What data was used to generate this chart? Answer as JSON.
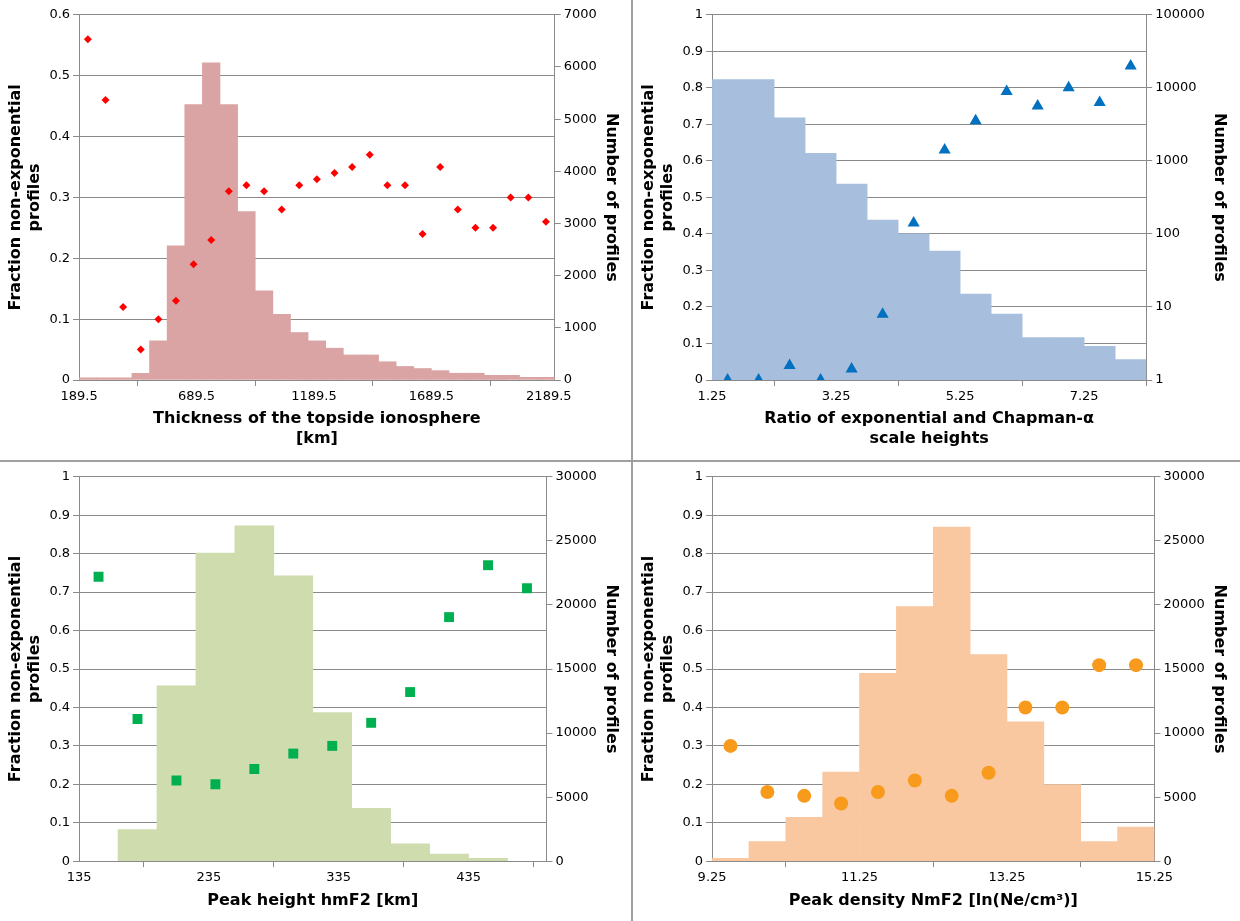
{
  "chart_data": [
    {
      "type": "histogram",
      "xlabel": "Thickness of the topside ionosphere [km]",
      "ylabel": "Fraction non-exponential profiles",
      "y2label": "Number of profiles",
      "bins": [
        189.5,
        264.5,
        339.5,
        414.5,
        489.5,
        564.5,
        639.5,
        714.5,
        789.5,
        864.5,
        939.5,
        1014.5,
        1089.5,
        1164.5,
        1239.5,
        1314.5,
        1389.5,
        1464.5,
        1539.5,
        1614.5,
        1689.5,
        1764.5,
        1839.5,
        1914.5,
        1989.5,
        2064.5,
        2139.5,
        2214.5
      ],
      "xlim": [
        189.5,
        2214.5
      ],
      "xticks": [
        189.5,
        689.5,
        1189.5,
        1689.5,
        2189.5
      ],
      "ylim": [
        0,
        0.6
      ],
      "yticks": [
        0,
        0.1,
        0.2,
        0.3,
        0.4,
        0.5,
        0.6
      ],
      "y2lim": [
        0,
        7000
      ],
      "y2ticks": [
        0,
        1000,
        2000,
        3000,
        4000,
        5000,
        6000,
        7000
      ],
      "grid": "y",
      "marker": "diamond",
      "series": [
        {
          "axis": "y2",
          "color": "#dba4a4",
          "values": [
            40,
            40,
            40,
            130,
            750,
            2570,
            5280,
            6080,
            5280,
            3230,
            1710,
            1260,
            910,
            750,
            610,
            480,
            480,
            350,
            260,
            220,
            180,
            130,
            130,
            90,
            90,
            50,
            50
          ]
        },
        {
          "type": "scatter",
          "color": "#ff0000",
          "x": [
            227,
            302,
            377,
            452,
            527,
            602,
            677,
            752,
            827,
            902,
            977,
            1052,
            1127,
            1202,
            1277,
            1352,
            1427,
            1502,
            1577,
            1652,
            1727,
            1802,
            1877,
            1952,
            2027,
            2102,
            2177
          ],
          "values": [
            0.56,
            0.46,
            0.12,
            0.05,
            0.1,
            0.13,
            0.19,
            0.23,
            0.31,
            0.32,
            0.31,
            0.28,
            0.32,
            0.33,
            0.34,
            0.35,
            0.37,
            0.32,
            0.32,
            0.24,
            0.35,
            0.28,
            0.25,
            0.25,
            0.3,
            0.3,
            0.26
          ]
        }
      ]
    },
    {
      "type": "histogram",
      "xlabel": "Ratio of exponential and Chapman-α scale heights",
      "ylabel": "Fraction non-exponential profiles",
      "y2label": "Number of profiles",
      "bins": [
        1.25,
        1.75,
        2.25,
        2.75,
        3.25,
        3.75,
        4.25,
        4.75,
        5.25,
        5.75,
        6.25,
        6.75,
        7.25,
        7.75,
        8.25
      ],
      "xlim": [
        1.25,
        8.25
      ],
      "xticks": [
        1.25,
        3.25,
        5.25,
        7.25
      ],
      "ylim": [
        0,
        1
      ],
      "yticks": [
        0,
        0.1,
        0.2,
        0.3,
        0.4,
        0.5,
        0.6,
        0.7,
        0.8,
        0.9,
        1
      ],
      "y2lim": [
        1,
        100000
      ],
      "y2ticks": [
        1,
        10,
        100,
        1000,
        10000,
        100000
      ],
      "log": "y2",
      "grid": "y",
      "marker": "triangle",
      "series": [
        {
          "axis": "y2",
          "color": "#a7bfdd",
          "values": [
            13000,
            13000,
            3900,
            1270,
            480,
            155,
            100,
            58,
            15,
            8,
            3.8,
            3.8,
            2.9,
            1.9
          ]
        },
        {
          "type": "scatter",
          "color": "#0070c0",
          "x": [
            1.5,
            2,
            2.5,
            3,
            3.5,
            4,
            4.5,
            5,
            5.5,
            6,
            6.5,
            7,
            7.5,
            8
          ],
          "values": [
            0,
            0,
            0.04,
            0,
            0.03,
            0.18,
            0.43,
            0.63,
            0.71,
            0.79,
            0.75,
            0.8,
            0.76,
            0.86
          ]
        }
      ]
    },
    {
      "type": "histogram",
      "xlabel": "Peak height hmF2 [km]",
      "ylabel": "Fraction non-exponential profiles",
      "y2label": "Number of profiles",
      "bins": [
        165,
        195,
        225,
        255,
        285,
        315,
        345,
        375,
        405,
        435,
        465
      ],
      "xlim": [
        135,
        495
      ],
      "xticks": [
        135,
        235,
        335,
        435
      ],
      "ylim": [
        0,
        1
      ],
      "yticks": [
        0,
        0.1,
        0.2,
        0.3,
        0.4,
        0.5,
        0.6,
        0.7,
        0.8,
        0.9,
        1
      ],
      "y2lim": [
        0,
        30000
      ],
      "y2ticks": [
        0,
        5000,
        10000,
        15000,
        20000,
        25000,
        30000
      ],
      "grid": "y",
      "marker": "square",
      "series": [
        {
          "axis": "y2",
          "color": "#cedcae",
          "values": [
            2470,
            13690,
            24040,
            26170,
            22270,
            11590,
            4120,
            1350,
            560,
            220
          ]
        },
        {
          "type": "scatter",
          "color": "#00b050",
          "x": [
            150,
            180,
            210,
            240,
            270,
            300,
            330,
            360,
            390,
            420,
            450,
            480
          ],
          "values": [
            0.74,
            0.37,
            0.21,
            0.2,
            0.24,
            0.28,
            0.3,
            0.36,
            0.44,
            0.635,
            0.77,
            0.71
          ]
        }
      ]
    },
    {
      "type": "histogram",
      "xlabel": "Peak density NmF2 [ln(Ne/cm³)]",
      "ylabel": "Fraction non-exponential profiles",
      "y2label": "Number of profiles",
      "bins": [
        9.25,
        9.75,
        10.25,
        10.75,
        11.25,
        11.75,
        12.25,
        12.75,
        13.25,
        13.75,
        14.25,
        14.75,
        15.25
      ],
      "xlim": [
        9.25,
        15.25
      ],
      "xticks": [
        9.25,
        11.25,
        13.25,
        15.25
      ],
      "ylim": [
        0,
        1
      ],
      "yticks": [
        0,
        0.1,
        0.2,
        0.3,
        0.4,
        0.5,
        0.6,
        0.7,
        0.8,
        0.9,
        1
      ],
      "y2lim": [
        0,
        30000
      ],
      "y2ticks": [
        0,
        5000,
        10000,
        15000,
        20000,
        25000,
        30000
      ],
      "grid": "y",
      "marker": "circle",
      "series": [
        {
          "axis": "y2",
          "color": "#f9c8a0",
          "values": [
            220,
            1530,
            3420,
            6950,
            14670,
            19880,
            26070,
            16130,
            10880,
            5970,
            1530,
            2660
          ]
        },
        {
          "type": "scatter",
          "color": "#f89a1c",
          "x": [
            9.5,
            10,
            10.5,
            11,
            11.5,
            12,
            12.5,
            13,
            13.5,
            14,
            14.5,
            15
          ],
          "values": [
            0.3,
            0.18,
            0.17,
            0.15,
            0.18,
            0.21,
            0.17,
            0.23,
            0.4,
            0.4,
            0.51,
            0.51
          ]
        }
      ]
    }
  ]
}
